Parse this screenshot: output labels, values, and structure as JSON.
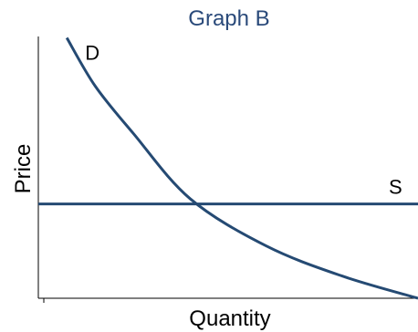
{
  "chart_data": {
    "type": "line",
    "title": "Graph B",
    "xlabel": "Quantity",
    "ylabel": "Price",
    "xlim": [
      0,
      10
    ],
    "ylim": [
      0,
      10
    ],
    "grid": false,
    "show_tick_labels": false,
    "series": [
      {
        "name": "D",
        "color": "#254a73",
        "x": [
          0.75,
          1.5,
          2.5,
          4.0,
          6.0,
          8.0,
          10.0
        ],
        "y": [
          9.95,
          8.1,
          6.3,
          3.8,
          2.0,
          0.85,
          0.0
        ]
      },
      {
        "name": "S",
        "color": "#254a73",
        "x": [
          0,
          10
        ],
        "y": [
          3.6,
          3.6
        ]
      }
    ]
  }
}
